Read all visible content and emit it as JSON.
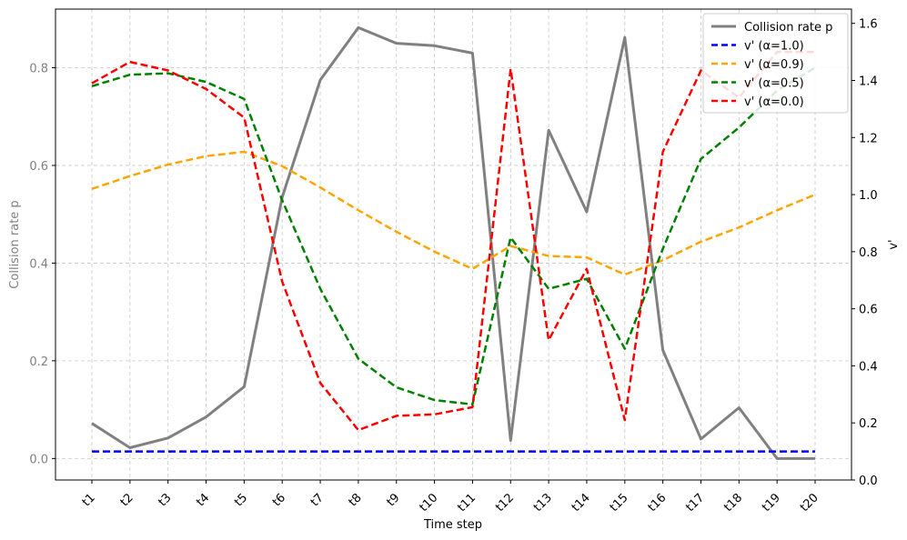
{
  "chart_data": {
    "type": "line",
    "xlabel": "Time step",
    "ylabel_left": "Collision rate p",
    "ylabel_right": "v'",
    "categories": [
      "t1",
      "t2",
      "t3",
      "t4",
      "t5",
      "t6",
      "t7",
      "t8",
      "t9",
      "t10",
      "t11",
      "t12",
      "t13",
      "t14",
      "t15",
      "t16",
      "t17",
      "t18",
      "t19",
      "t20"
    ],
    "ylim_left": [
      -0.044,
      0.92
    ],
    "ylim_right": [
      0.0,
      1.65
    ],
    "yticks_left": [
      0.0,
      0.2,
      0.4,
      0.6,
      0.8
    ],
    "yticks_right": [
      0.0,
      0.2,
      0.4,
      0.6,
      0.8,
      1.0,
      1.2,
      1.4,
      1.6
    ],
    "grid": true,
    "legend_position": "top-right",
    "left_axis_color": "#808080",
    "series": [
      {
        "name": "Collision rate p",
        "axis": "left",
        "color": "#808080",
        "style": "solid",
        "values": [
          0.072,
          0.022,
          0.042,
          0.085,
          0.147,
          0.535,
          0.775,
          0.882,
          0.85,
          0.845,
          0.83,
          0.037,
          0.672,
          0.505,
          0.862,
          0.222,
          0.04,
          0.104,
          0.0,
          0.0
        ]
      },
      {
        "name": "v' (α=1.0)",
        "axis": "right",
        "color": "#0000ff",
        "style": "dashed",
        "values": [
          0.1,
          0.1,
          0.1,
          0.1,
          0.1,
          0.1,
          0.1,
          0.1,
          0.1,
          0.1,
          0.1,
          0.1,
          0.1,
          0.1,
          0.1,
          0.1,
          0.1,
          0.1,
          0.1,
          0.1
        ]
      },
      {
        "name": "v' (α=0.9)",
        "axis": "right",
        "color": "#ffa500",
        "style": "dashed",
        "values": [
          1.02,
          1.065,
          1.105,
          1.135,
          1.15,
          1.1,
          1.025,
          0.945,
          0.87,
          0.8,
          0.74,
          0.82,
          0.785,
          0.78,
          0.72,
          0.77,
          0.835,
          0.885,
          0.945,
          1.0
        ]
      },
      {
        "name": "v' (α=0.5)",
        "axis": "right",
        "color": "#008000",
        "style": "dashed",
        "values": [
          1.38,
          1.42,
          1.425,
          1.395,
          1.335,
          0.98,
          0.67,
          0.425,
          0.325,
          0.28,
          0.265,
          0.85,
          0.67,
          0.705,
          0.46,
          0.81,
          1.125,
          1.235,
          1.365,
          1.445
        ]
      },
      {
        "name": "v' (α=0.0)",
        "axis": "right",
        "color": "#ff0000",
        "style": "dashed",
        "values": [
          1.39,
          1.465,
          1.435,
          1.37,
          1.27,
          0.695,
          0.34,
          0.175,
          0.225,
          0.23,
          0.255,
          1.44,
          0.49,
          0.74,
          0.21,
          1.15,
          1.435,
          1.34,
          1.5,
          1.5
        ]
      }
    ]
  }
}
